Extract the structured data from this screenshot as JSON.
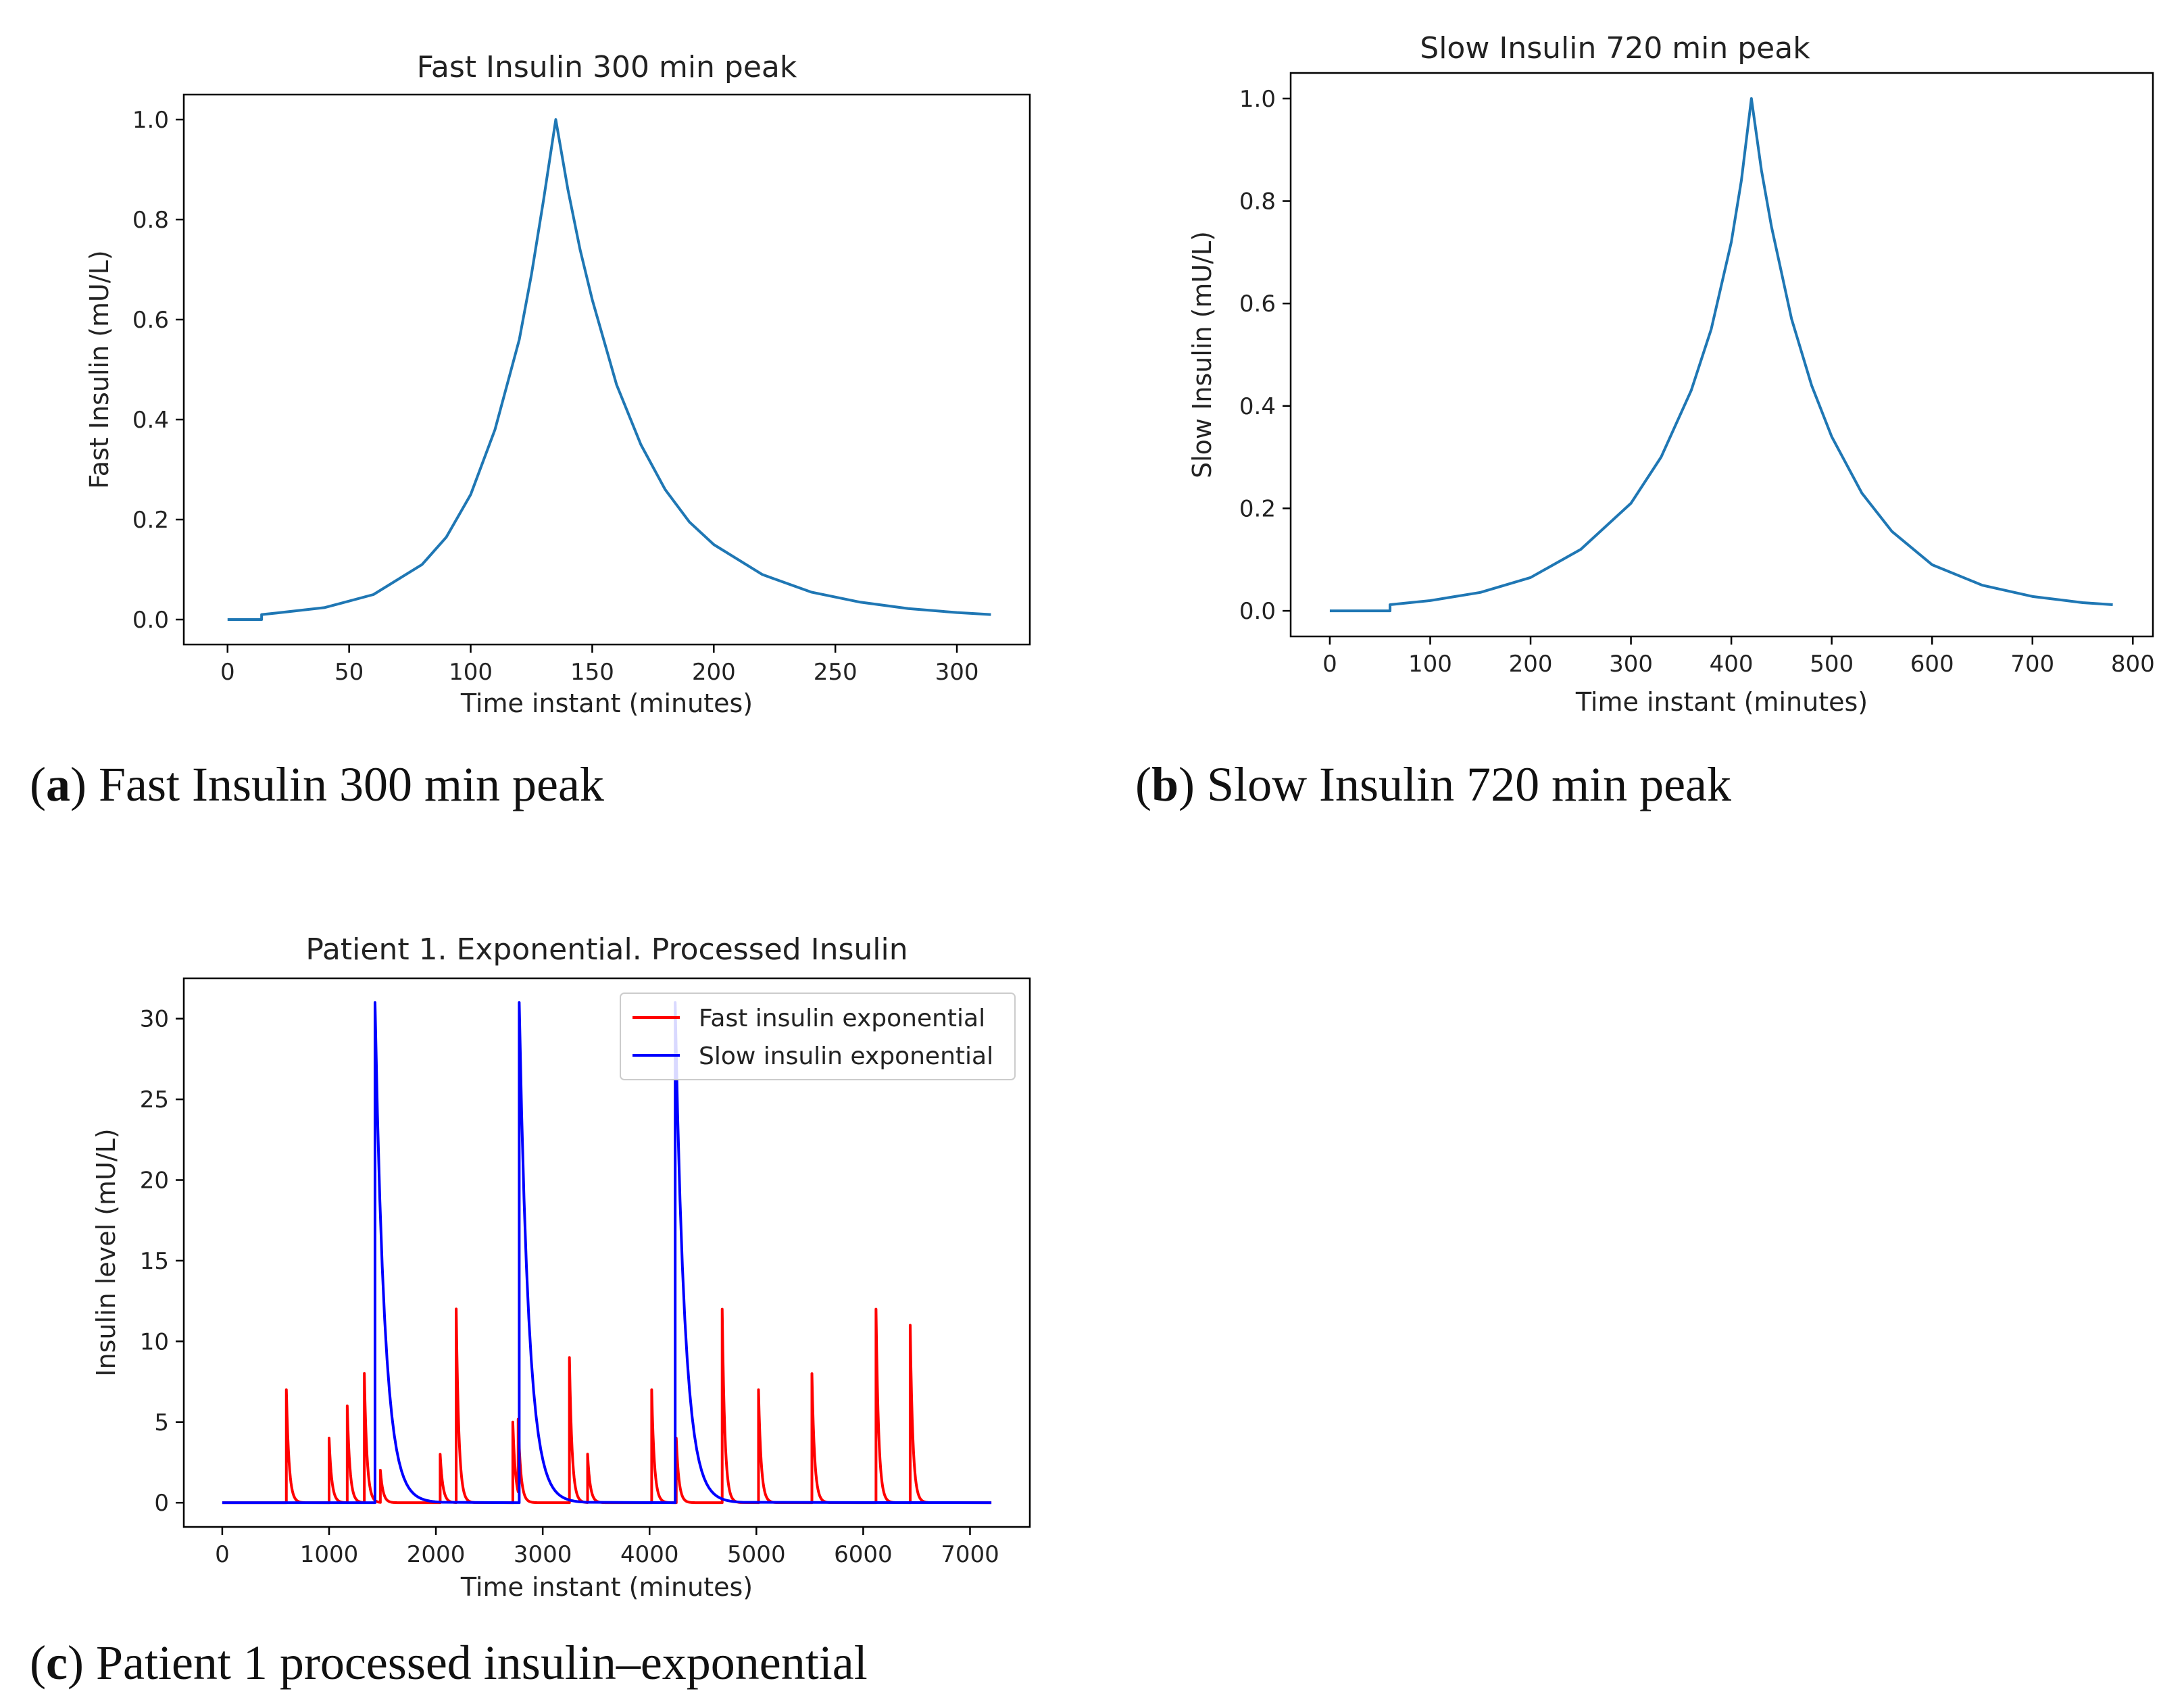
{
  "captions": {
    "a": {
      "letter": "a",
      "text": " Fast Insulin 300 min peak"
    },
    "b": {
      "letter": "b",
      "text": " Slow Insulin 720 min peak"
    },
    "c": {
      "letter": "c",
      "text": " Patient 1 processed insulin–exponential"
    }
  },
  "chart_data": [
    {
      "id": "a",
      "type": "line",
      "title": "Fast Insulin 300 min peak",
      "xlabel": "Time instant (minutes)",
      "ylabel": "Fast Insulin (mU/L)",
      "xlim": [
        -18,
        330
      ],
      "ylim": [
        -0.05,
        1.05
      ],
      "xticks": [
        0,
        50,
        100,
        150,
        200,
        250,
        300
      ],
      "yticks": [
        0.0,
        0.2,
        0.4,
        0.6,
        0.8,
        1.0
      ],
      "ytick_labels": [
        "0.0",
        "0.2",
        "0.4",
        "0.6",
        "0.8",
        "1.0"
      ],
      "series": [
        {
          "name": "Fast Insulin",
          "color": "#1f77b4",
          "x": [
            0,
            14,
            14,
            20,
            40,
            60,
            80,
            90,
            100,
            110,
            120,
            125,
            130,
            135,
            140,
            145,
            150,
            160,
            170,
            180,
            190,
            200,
            220,
            240,
            260,
            280,
            300,
            314
          ],
          "y": [
            0.0,
            0.0,
            0.01,
            0.013,
            0.024,
            0.05,
            0.11,
            0.165,
            0.25,
            0.38,
            0.56,
            0.69,
            0.84,
            1.0,
            0.86,
            0.74,
            0.64,
            0.47,
            0.35,
            0.26,
            0.195,
            0.15,
            0.09,
            0.055,
            0.035,
            0.022,
            0.014,
            0.01
          ]
        }
      ]
    },
    {
      "id": "b",
      "type": "line",
      "title": "Slow Insulin 720 min peak",
      "xlabel": "Time instant (minutes)",
      "ylabel": "Slow Insulin (mU/L)",
      "xlim": [
        -39,
        820
      ],
      "ylim": [
        -0.05,
        1.05
      ],
      "xticks": [
        0,
        100,
        200,
        300,
        400,
        500,
        600,
        700,
        800
      ],
      "yticks": [
        0.0,
        0.2,
        0.4,
        0.6,
        0.8,
        1.0
      ],
      "ytick_labels": [
        "0.0",
        "0.2",
        "0.4",
        "0.6",
        "0.8",
        "1.0"
      ],
      "series": [
        {
          "name": "Slow Insulin",
          "color": "#1f77b4",
          "x": [
            0,
            60,
            60,
            100,
            150,
            200,
            250,
            300,
            330,
            360,
            380,
            400,
            410,
            420,
            430,
            440,
            460,
            480,
            500,
            530,
            560,
            600,
            650,
            700,
            750,
            780
          ],
          "y": [
            0.0,
            0.0,
            0.012,
            0.02,
            0.036,
            0.065,
            0.12,
            0.21,
            0.3,
            0.43,
            0.55,
            0.72,
            0.84,
            1.0,
            0.86,
            0.75,
            0.57,
            0.44,
            0.34,
            0.23,
            0.155,
            0.09,
            0.05,
            0.028,
            0.016,
            0.012
          ]
        }
      ]
    },
    {
      "id": "c",
      "type": "line",
      "title": "Patient 1. Exponential. Processed Insulin",
      "xlabel": "Time instant (minutes)",
      "ylabel": "Insulin level (mU/L)",
      "xlim": [
        -360,
        7560
      ],
      "ylim": [
        -1.5,
        32.5
      ],
      "xticks": [
        0,
        1000,
        2000,
        3000,
        4000,
        5000,
        6000,
        7000
      ],
      "yticks": [
        0,
        5,
        10,
        15,
        20,
        25,
        30
      ],
      "ytick_labels": [
        "0",
        "5",
        "10",
        "15",
        "20",
        "25",
        "30"
      ],
      "legend": {
        "placement": "upper right"
      },
      "series": [
        {
          "name": "Fast insulin exponential",
          "color": "#ff0000",
          "decay_minutes": 25,
          "baseline_x": [
            0,
            7200
          ],
          "spikes": [
            {
              "x": 600,
              "peak": 7
            },
            {
              "x": 1000,
              "peak": 4
            },
            {
              "x": 1170,
              "peak": 6
            },
            {
              "x": 1330,
              "peak": 8
            },
            {
              "x": 1480,
              "peak": 2
            },
            {
              "x": 2040,
              "peak": 3
            },
            {
              "x": 2190,
              "peak": 12
            },
            {
              "x": 2720,
              "peak": 5
            },
            {
              "x": 2770,
              "peak": 4.5
            },
            {
              "x": 3250,
              "peak": 9
            },
            {
              "x": 3420,
              "peak": 3
            },
            {
              "x": 4020,
              "peak": 7
            },
            {
              "x": 4250,
              "peak": 4
            },
            {
              "x": 4680,
              "peak": 12
            },
            {
              "x": 5020,
              "peak": 7
            },
            {
              "x": 5520,
              "peak": 8
            },
            {
              "x": 6120,
              "peak": 12
            },
            {
              "x": 6440,
              "peak": 11
            }
          ]
        },
        {
          "name": "Slow insulin exponential",
          "color": "#0000ff",
          "decay_minutes": 90,
          "baseline_x": [
            0,
            7200
          ],
          "spikes": [
            {
              "x": 1430,
              "peak": 31
            },
            {
              "x": 2780,
              "peak": 31
            },
            {
              "x": 4240,
              "peak": 31
            }
          ]
        }
      ]
    }
  ]
}
